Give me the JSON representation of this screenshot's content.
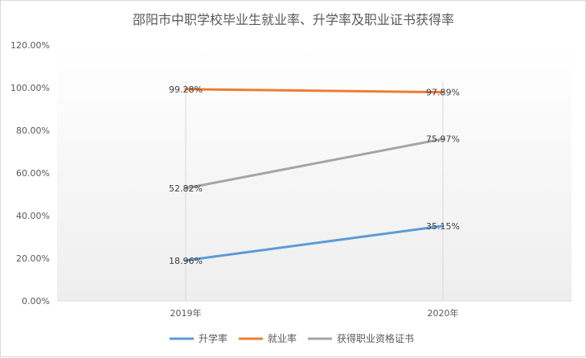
{
  "chart_data": {
    "type": "line",
    "title": "邵阳市中职学校毕业生就业率、升学率及职业证书获得率",
    "categories": [
      "2019年",
      "2020年"
    ],
    "ylim": [
      0,
      120
    ],
    "yticks": [
      "0.00%",
      "20.00%",
      "40.00%",
      "60.00%",
      "80.00%",
      "100.00%",
      "120.00%"
    ],
    "grid": false,
    "legend_position": "bottom",
    "series": [
      {
        "name": "升学率",
        "values": [
          18.96,
          35.15
        ],
        "labels": [
          "18.96%",
          "35.15%"
        ],
        "color": "#5b9bd5"
      },
      {
        "name": "就业率",
        "values": [
          99.28,
          97.89
        ],
        "labels": [
          "99.28%",
          "97.89%"
        ],
        "color": "#ed7d31"
      },
      {
        "name": "获得职业资格证书",
        "values": [
          52.82,
          75.97
        ],
        "labels": [
          "52.82%",
          "75.97%"
        ],
        "color": "#a5a5a5"
      }
    ]
  }
}
